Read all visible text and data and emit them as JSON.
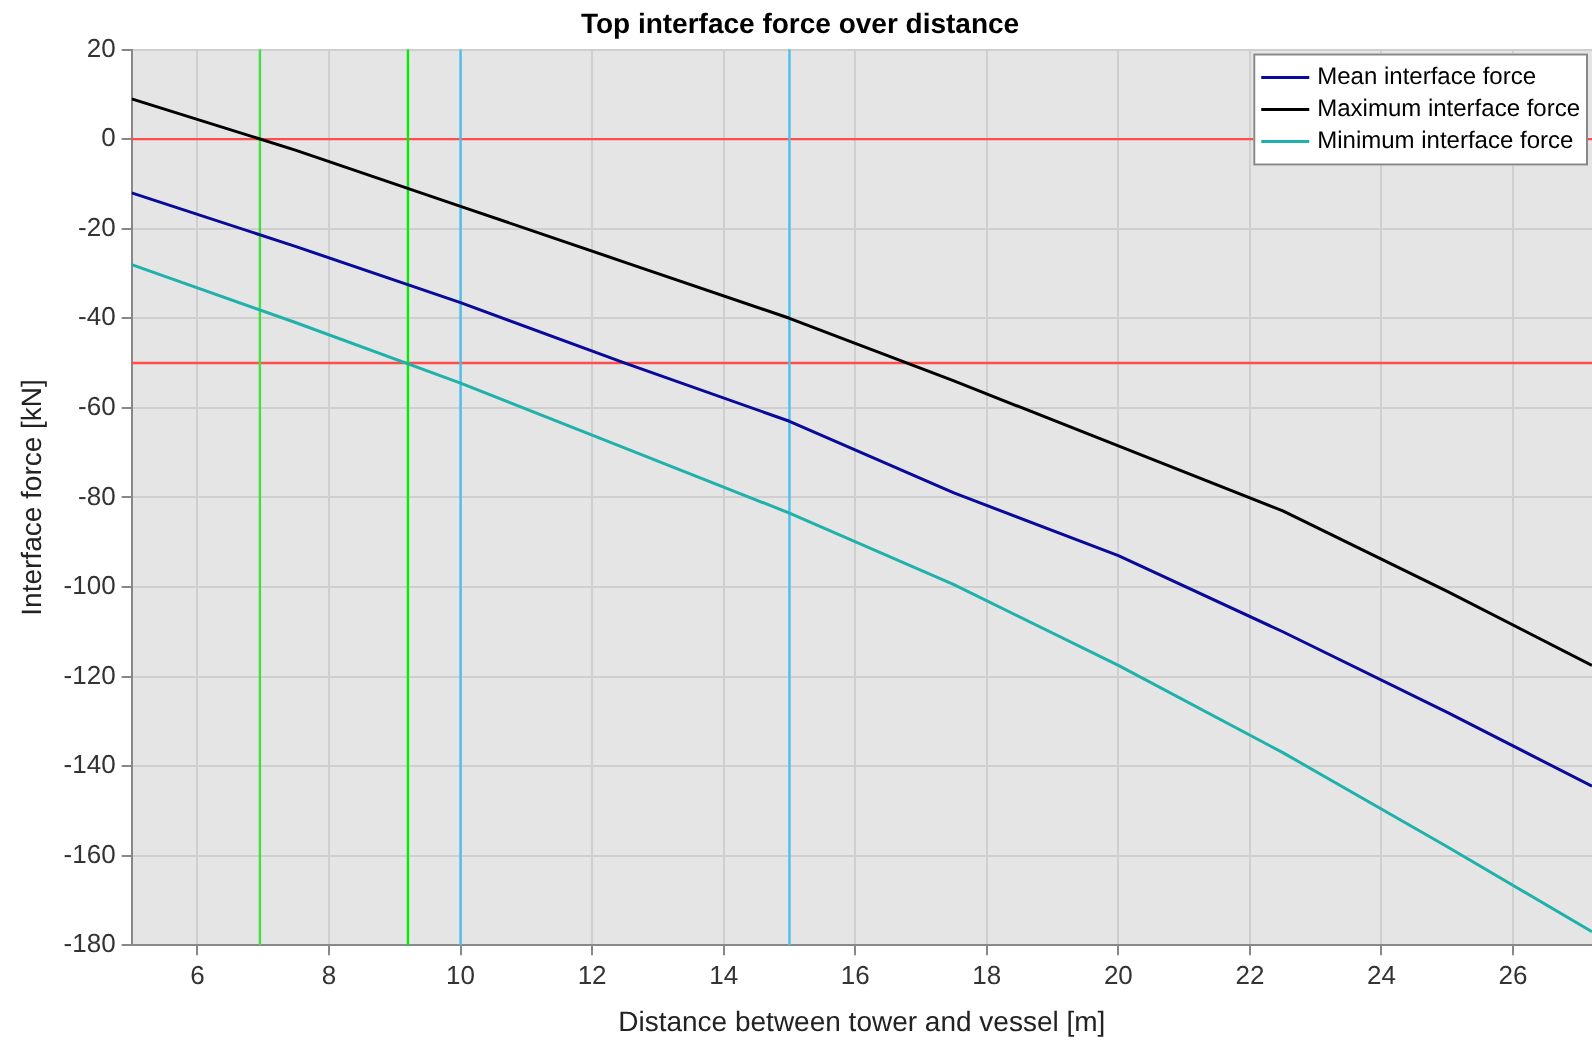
{
  "chart_data": {
    "type": "line",
    "title": "Top interface force over distance",
    "xlabel": "Distance between tower and vessel [m]",
    "ylabel": "Interface force [kN]",
    "x": [
      5,
      7.5,
      10,
      12.5,
      15,
      17.5,
      20,
      22.5,
      25,
      27.2
    ],
    "series": [
      {
        "name": "Mean interface force",
        "color": "#0a0a9a",
        "values": [
          -12,
          -24,
          -36.5,
          -50,
          -63,
          -79,
          -93,
          -110,
          -128,
          -144.5
        ]
      },
      {
        "name": "Maximum interface force",
        "color": "#000000",
        "values": [
          9,
          -2.5,
          -15,
          -27.5,
          -40,
          -54,
          -68.5,
          -83,
          -101,
          -117.5
        ]
      },
      {
        "name": "Minimum interface force",
        "color": "#20b2aa",
        "values": [
          -28,
          -41,
          -54.5,
          -69,
          -83.5,
          -99.5,
          -117.5,
          -137,
          -158,
          -177
        ]
      }
    ],
    "xlim": [
      5,
      27.2
    ],
    "xticks": [
      6,
      8,
      10,
      12,
      14,
      16,
      18,
      20,
      22,
      24,
      26
    ],
    "ylim": [
      -180,
      20
    ],
    "yticks": [
      -180,
      -160,
      -140,
      -120,
      -100,
      -80,
      -60,
      -40,
      -20,
      0,
      20
    ],
    "ref_lines": [
      {
        "axis": "y",
        "value": 0,
        "color": "#ff4d4d"
      },
      {
        "axis": "y",
        "value": -50,
        "color": "#ff4d4d"
      },
      {
        "axis": "x",
        "value": 6.95,
        "color": "#44dd44"
      },
      {
        "axis": "x",
        "value": 9.2,
        "color": "#00ee00"
      },
      {
        "axis": "x",
        "value": 10,
        "color": "#4dbeee"
      },
      {
        "axis": "x",
        "value": 15,
        "color": "#4dbeee"
      }
    ],
    "grid": true,
    "legend": "top right",
    "marker": "none",
    "line_style": "solid"
  }
}
